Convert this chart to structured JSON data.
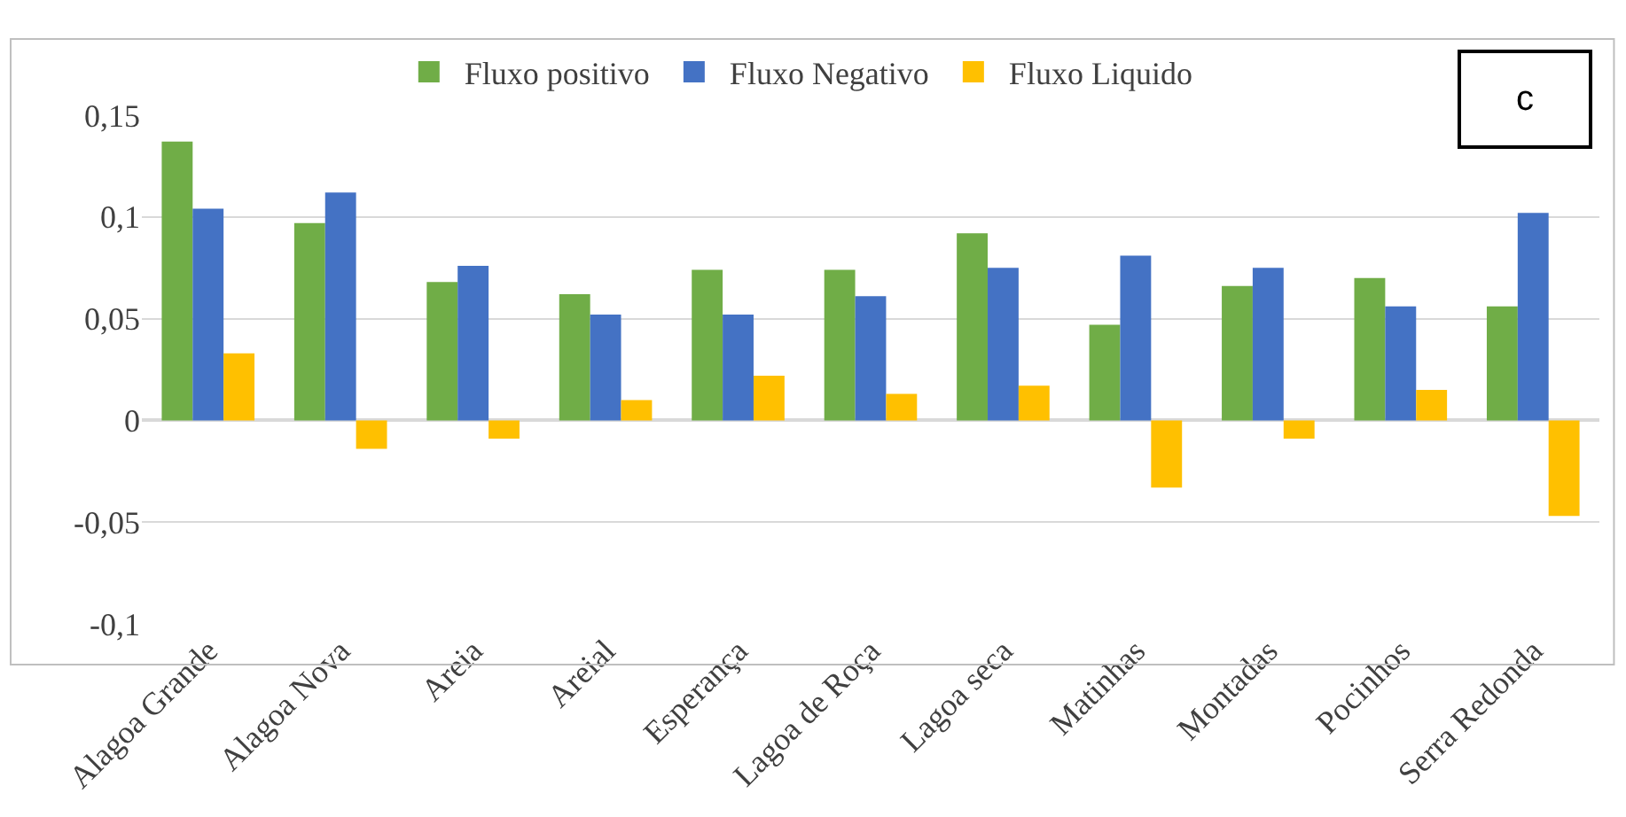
{
  "chart_data": {
    "type": "bar",
    "categories": [
      "Alagoa Grande",
      "Alagoa Nova",
      "Areia",
      "Areial",
      "Esperança",
      "Lagoa de Roça",
      "Lagoa seca",
      "Matinhas",
      "Montadas",
      "Pocinhos",
      "Serra Redonda"
    ],
    "series": [
      {
        "name": "Fluxo positivo",
        "color": "#70ad47",
        "values": [
          0.137,
          0.097,
          0.068,
          0.062,
          0.074,
          0.074,
          0.092,
          0.047,
          0.066,
          0.07,
          0.056
        ]
      },
      {
        "name": "Fluxo Negativo",
        "color": "#4472c4",
        "values": [
          0.104,
          0.112,
          0.076,
          0.052,
          0.052,
          0.061,
          0.075,
          0.081,
          0.075,
          0.056,
          0.102
        ]
      },
      {
        "name": "Fluxo Liquido",
        "color": "#ffc000",
        "values": [
          0.033,
          -0.014,
          -0.009,
          0.01,
          0.022,
          0.013,
          0.017,
          -0.033,
          -0.009,
          0.015,
          -0.047
        ]
      }
    ],
    "ylim": [
      -0.1,
      0.15
    ],
    "yticks": [
      {
        "value": -0.1,
        "label": "-0,1"
      },
      {
        "value": -0.05,
        "label": "-0,05"
      },
      {
        "value": 0,
        "label": "0"
      },
      {
        "value": 0.05,
        "label": "0,05"
      },
      {
        "value": 0.1,
        "label": "0,1"
      },
      {
        "value": 0.15,
        "label": "0,15"
      }
    ],
    "grid": "y",
    "legend": "top",
    "annotations": [
      "c"
    ]
  }
}
